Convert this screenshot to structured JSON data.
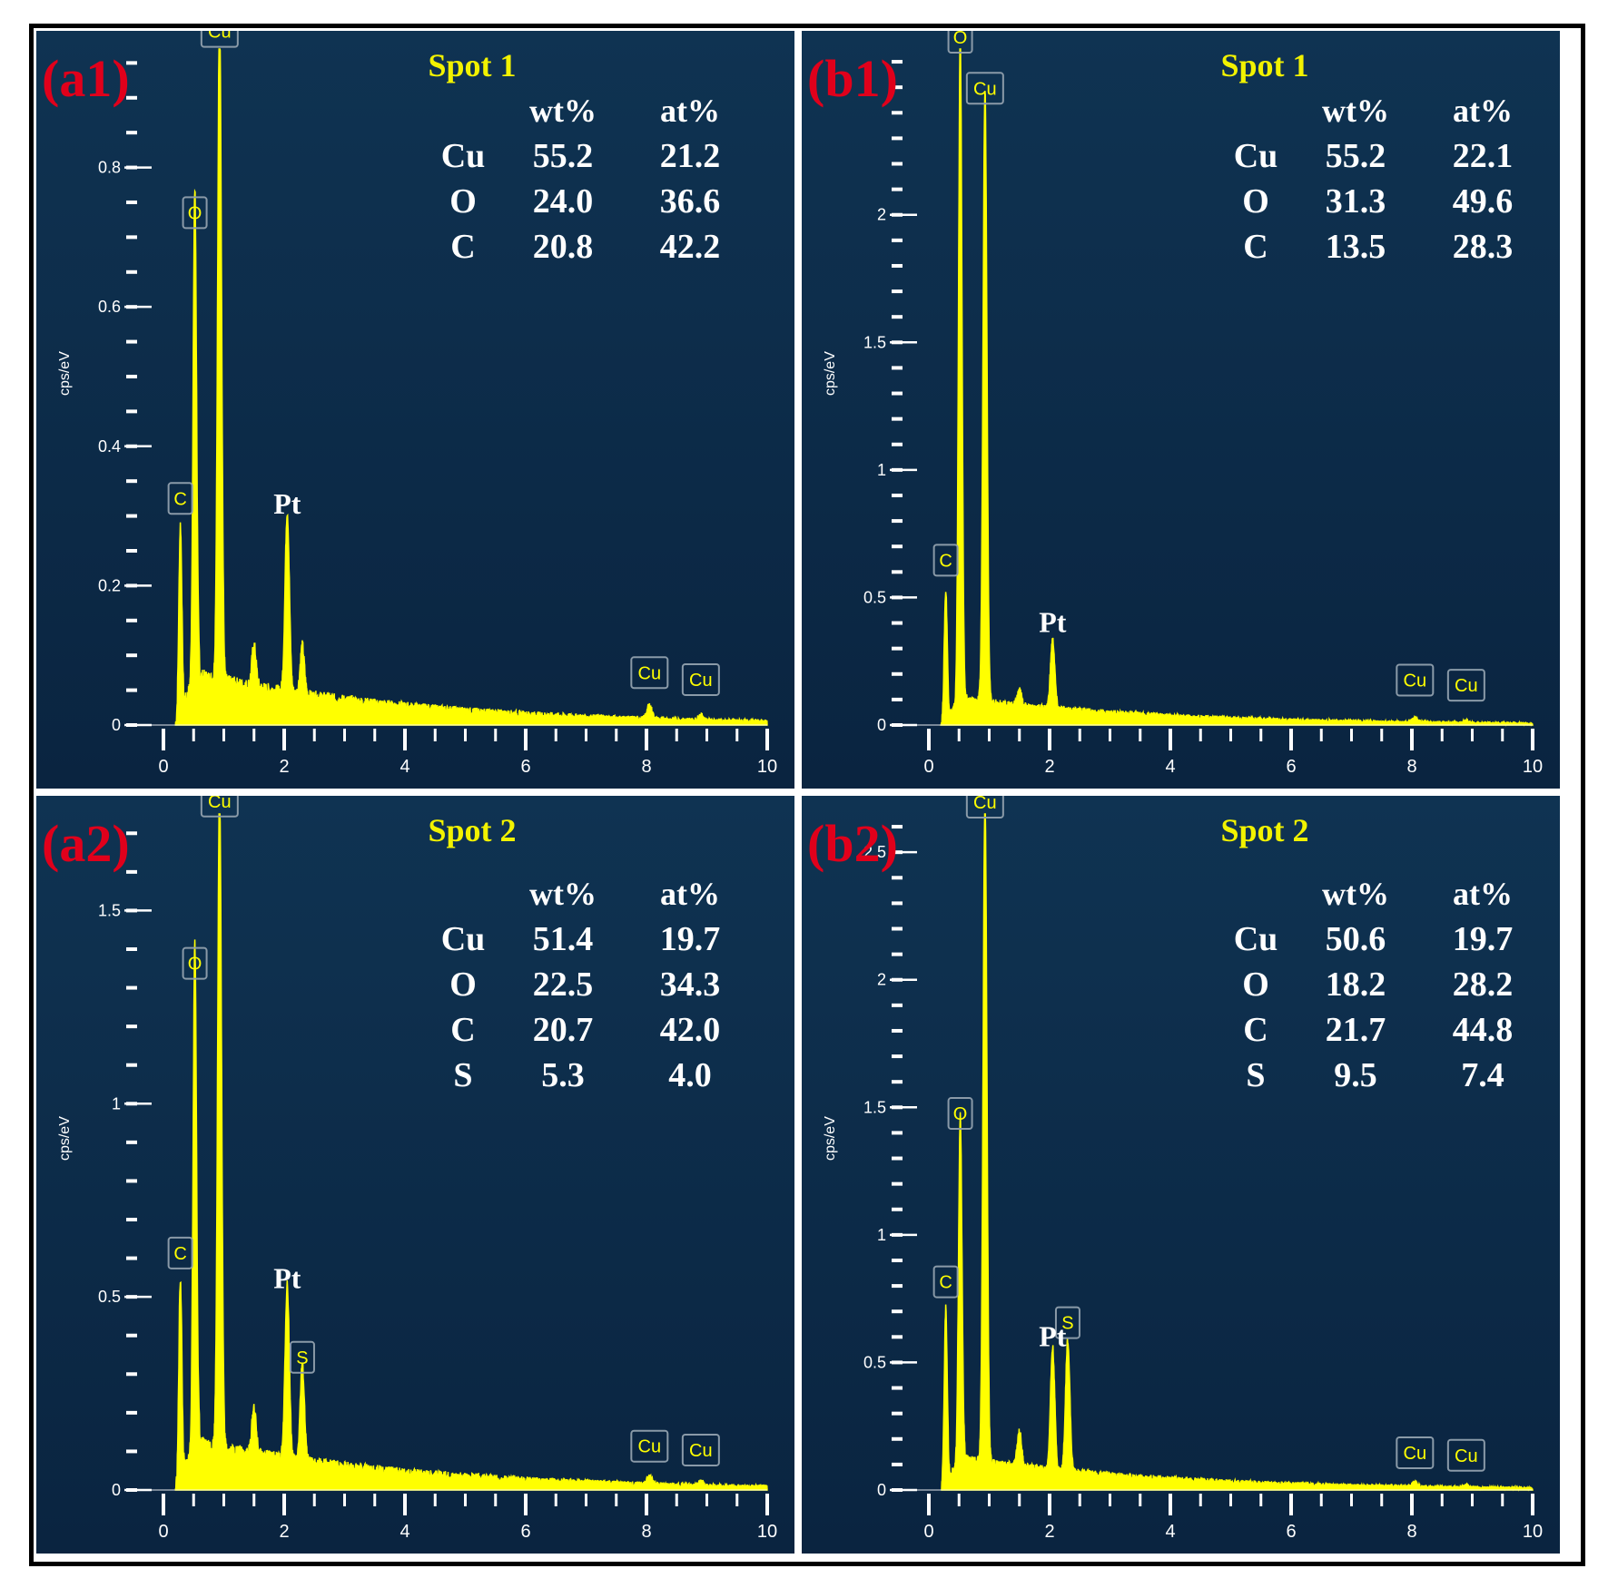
{
  "chart_data": [
    {
      "type": "line",
      "panel_label": "(a1)",
      "spot": "Spot 1",
      "ylabel": "cps/eV",
      "xlim": [
        0,
        10
      ],
      "ylim": [
        0,
        0.97
      ],
      "x_ticks": [
        "0",
        "2",
        "4",
        "6",
        "8",
        "10"
      ],
      "y_ticks": [
        {
          "v": 0,
          "t": "0"
        },
        {
          "v": 0.2,
          "t": "0.2"
        },
        {
          "v": 0.4,
          "t": "0.4"
        },
        {
          "v": 0.6,
          "t": "0.6"
        },
        {
          "v": 0.8,
          "t": "0.8"
        }
      ],
      "minor_y_step": 0.05,
      "peaks": [
        {
          "x": 0.28,
          "y": 0.27,
          "w": 0.035
        },
        {
          "x": 0.52,
          "y": 0.7,
          "w": 0.04
        },
        {
          "x": 0.93,
          "y": 0.96,
          "w": 0.045
        },
        {
          "x": 1.5,
          "y": 0.06,
          "w": 0.05
        },
        {
          "x": 2.05,
          "y": 0.26,
          "w": 0.05
        },
        {
          "x": 2.3,
          "y": 0.07,
          "w": 0.05
        },
        {
          "x": 8.05,
          "y": 0.02,
          "w": 0.06
        },
        {
          "x": 8.9,
          "y": 0.008,
          "w": 0.06
        }
      ],
      "background": {
        "start": 0.2,
        "base": 0.07,
        "decay": 0.28
      },
      "peak_labels": [
        {
          "text": "Cu",
          "x": 0.93,
          "y": 0.96,
          "boxed": true
        },
        {
          "text": "O",
          "x": 0.52,
          "y": 0.7,
          "boxed": true
        },
        {
          "text": "C",
          "x": 0.28,
          "y": 0.29,
          "boxed": true
        },
        {
          "text": "Pt",
          "x": 2.05,
          "y": 0.28,
          "boxed": false
        },
        {
          "text": "Cu",
          "x": 8.05,
          "y": 0.04,
          "boxed": true
        },
        {
          "text": "Cu",
          "x": 8.9,
          "y": 0.03,
          "boxed": true
        }
      ],
      "composition": {
        "headers": [
          "wt%",
          "at%"
        ],
        "rows": [
          {
            "element": "Cu",
            "wt": "55.2",
            "at": "21.2"
          },
          {
            "element": "O",
            "wt": "24.0",
            "at": "36.6"
          },
          {
            "element": "C",
            "wt": "20.8",
            "at": "42.2"
          }
        ]
      }
    },
    {
      "type": "line",
      "panel_label": "(b1)",
      "spot": "Spot 1",
      "ylabel": "cps/eV",
      "xlim": [
        0,
        10
      ],
      "ylim": [
        0,
        2.65
      ],
      "x_ticks": [
        "0",
        "2",
        "4",
        "6",
        "8",
        "10"
      ],
      "y_ticks": [
        {
          "v": 0,
          "t": "0"
        },
        {
          "v": 0.5,
          "t": "0.5"
        },
        {
          "v": 1,
          "t": "1"
        },
        {
          "v": 1.5,
          "t": "1.5"
        },
        {
          "v": 2,
          "t": "2"
        }
      ],
      "minor_y_step": 0.1,
      "peaks": [
        {
          "x": 0.28,
          "y": 0.5,
          "w": 0.035
        },
        {
          "x": 0.52,
          "y": 2.6,
          "w": 0.04
        },
        {
          "x": 0.93,
          "y": 2.4,
          "w": 0.045
        },
        {
          "x": 1.5,
          "y": 0.06,
          "w": 0.05
        },
        {
          "x": 2.05,
          "y": 0.27,
          "w": 0.05
        },
        {
          "x": 8.05,
          "y": 0.02,
          "w": 0.06
        },
        {
          "x": 8.9,
          "y": 0.01,
          "w": 0.06
        }
      ],
      "background": {
        "start": 0.2,
        "base": 0.1,
        "decay": 0.3
      },
      "peak_labels": [
        {
          "text": "O",
          "x": 0.52,
          "y": 2.6,
          "boxed": true
        },
        {
          "text": "Cu",
          "x": 0.93,
          "y": 2.4,
          "boxed": true
        },
        {
          "text": "C",
          "x": 0.28,
          "y": 0.55,
          "boxed": true
        },
        {
          "text": "Pt",
          "x": 2.05,
          "y": 0.3,
          "boxed": false
        },
        {
          "text": "Cu",
          "x": 8.05,
          "y": 0.08,
          "boxed": true
        },
        {
          "text": "Cu",
          "x": 8.9,
          "y": 0.06,
          "boxed": true
        }
      ],
      "composition": {
        "headers": [
          "wt%",
          "at%"
        ],
        "rows": [
          {
            "element": "Cu",
            "wt": "55.2",
            "at": "22.1"
          },
          {
            "element": "O",
            "wt": "31.3",
            "at": "49.6"
          },
          {
            "element": "C",
            "wt": "13.5",
            "at": "28.3"
          }
        ]
      }
    },
    {
      "type": "line",
      "panel_label": "(a2)",
      "spot": "Spot 2",
      "ylabel": "cps/eV",
      "xlim": [
        0,
        10
      ],
      "ylim": [
        0,
        1.75
      ],
      "x_ticks": [
        "0",
        "2",
        "4",
        "6",
        "8",
        "10"
      ],
      "y_ticks": [
        {
          "v": 0,
          "t": "0"
        },
        {
          "v": 0.5,
          "t": "0.5"
        },
        {
          "v": 1,
          "t": "1"
        },
        {
          "v": 1.5,
          "t": "1.5"
        }
      ],
      "minor_y_step": 0.1,
      "peaks": [
        {
          "x": 0.28,
          "y": 0.52,
          "w": 0.035
        },
        {
          "x": 0.52,
          "y": 1.3,
          "w": 0.04
        },
        {
          "x": 0.93,
          "y": 1.72,
          "w": 0.045
        },
        {
          "x": 1.5,
          "y": 0.12,
          "w": 0.05
        },
        {
          "x": 2.05,
          "y": 0.45,
          "w": 0.05
        },
        {
          "x": 2.3,
          "y": 0.25,
          "w": 0.05
        },
        {
          "x": 8.05,
          "y": 0.02,
          "w": 0.06
        },
        {
          "x": 8.9,
          "y": 0.01,
          "w": 0.06
        }
      ],
      "background": {
        "start": 0.2,
        "base": 0.12,
        "decay": 0.28
      },
      "peak_labels": [
        {
          "text": "Cu",
          "x": 0.93,
          "y": 1.72,
          "boxed": true
        },
        {
          "text": "O",
          "x": 0.52,
          "y": 1.3,
          "boxed": true
        },
        {
          "text": "C",
          "x": 0.28,
          "y": 0.55,
          "boxed": true
        },
        {
          "text": "Pt",
          "x": 2.05,
          "y": 0.48,
          "boxed": false
        },
        {
          "text": "S",
          "x": 2.3,
          "y": 0.28,
          "boxed": true
        },
        {
          "text": "Cu",
          "x": 8.05,
          "y": 0.05,
          "boxed": true
        },
        {
          "text": "Cu",
          "x": 8.9,
          "y": 0.04,
          "boxed": true
        }
      ],
      "composition": {
        "headers": [
          "wt%",
          "at%"
        ],
        "rows": [
          {
            "element": "Cu",
            "wt": "51.4",
            "at": "19.7"
          },
          {
            "element": "O",
            "wt": "22.5",
            "at": "34.3"
          },
          {
            "element": "C",
            "wt": "20.7",
            "at": "42.0"
          },
          {
            "element": "S",
            "wt": "5.3",
            "at": "4.0"
          }
        ]
      }
    },
    {
      "type": "line",
      "panel_label": "(b2)",
      "spot": "Spot 2",
      "ylabel": "cps/eV",
      "xlim": [
        0,
        10
      ],
      "ylim": [
        0,
        2.65
      ],
      "x_ticks": [
        "0",
        "2",
        "4",
        "6",
        "8",
        "10"
      ],
      "y_ticks": [
        {
          "v": 0,
          "t": "0"
        },
        {
          "v": 0.5,
          "t": "0.5"
        },
        {
          "v": 1,
          "t": "1"
        },
        {
          "v": 1.5,
          "t": "1.5"
        },
        {
          "v": 2,
          "t": "2"
        },
        {
          "v": 2.5,
          "t": "2.5"
        }
      ],
      "minor_y_step": 0.1,
      "peaks": [
        {
          "x": 0.28,
          "y": 0.68,
          "w": 0.035
        },
        {
          "x": 0.52,
          "y": 1.35,
          "w": 0.04
        },
        {
          "x": 0.93,
          "y": 2.6,
          "w": 0.045
        },
        {
          "x": 1.5,
          "y": 0.14,
          "w": 0.05
        },
        {
          "x": 2.05,
          "y": 0.48,
          "w": 0.05
        },
        {
          "x": 2.3,
          "y": 0.52,
          "w": 0.05
        },
        {
          "x": 8.05,
          "y": 0.02,
          "w": 0.06
        },
        {
          "x": 8.9,
          "y": 0.01,
          "w": 0.06
        }
      ],
      "background": {
        "start": 0.2,
        "base": 0.12,
        "decay": 0.3
      },
      "peak_labels": [
        {
          "text": "Cu",
          "x": 0.93,
          "y": 2.6,
          "boxed": true
        },
        {
          "text": "O",
          "x": 0.52,
          "y": 1.38,
          "boxed": true
        },
        {
          "text": "C",
          "x": 0.28,
          "y": 0.72,
          "boxed": true
        },
        {
          "text": "S",
          "x": 2.3,
          "y": 0.56,
          "boxed": true
        },
        {
          "text": "Pt",
          "x": 2.05,
          "y": 0.5,
          "boxed": false
        },
        {
          "text": "Cu",
          "x": 8.05,
          "y": 0.05,
          "boxed": true
        },
        {
          "text": "Cu",
          "x": 8.9,
          "y": 0.04,
          "boxed": true
        }
      ],
      "composition": {
        "headers": [
          "wt%",
          "at%"
        ],
        "rows": [
          {
            "element": "Cu",
            "wt": "50.6",
            "at": "19.7"
          },
          {
            "element": "O",
            "wt": "18.2",
            "at": "28.2"
          },
          {
            "element": "C",
            "wt": "21.7",
            "at": "44.8"
          },
          {
            "element": "S",
            "wt": "9.5",
            "at": "7.4"
          }
        ]
      }
    }
  ],
  "colors": {
    "background_top": "#0f3352",
    "background_bottom": "#0a2440",
    "spectrum": "#ffff00",
    "spot_title": "#f2f200",
    "panel_label": "#e0001b",
    "axis": "#ffffff",
    "peak_box": "#8a9aa8"
  }
}
